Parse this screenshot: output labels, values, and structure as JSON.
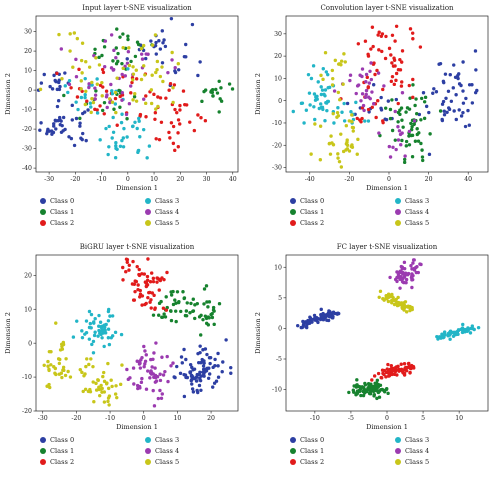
{
  "classes": [
    {
      "label": "Class 0",
      "color": "#2d3fa3"
    },
    {
      "label": "Class 1",
      "color": "#16822e"
    },
    {
      "label": "Class 2",
      "color": "#e11b1b"
    },
    {
      "label": "Class 3",
      "color": "#22b5c7"
    },
    {
      "label": "Class 4",
      "color": "#9b3bb0"
    },
    {
      "label": "Class 5",
      "color": "#c8c61a"
    }
  ],
  "chart_data": [
    {
      "type": "scatter",
      "title": "Input layer t-SNE visualization",
      "xlabel": "Dimension 1",
      "ylabel": "Dimension 2",
      "xlim": [
        -35,
        42
      ],
      "ylim": [
        -42,
        38
      ],
      "xticks": [
        -30,
        -20,
        -10,
        0,
        10,
        20,
        30,
        40
      ],
      "yticks": [
        -40,
        -30,
        -20,
        -10,
        0,
        10,
        20,
        30
      ],
      "grid": false,
      "legend": "below",
      "clusters": [
        {
          "cls": 0,
          "cx": -25,
          "cy": -18,
          "sx": 5,
          "sy": 5,
          "n": 40
        },
        {
          "cls": 0,
          "cx": -27,
          "cy": 3,
          "sx": 4,
          "sy": 4,
          "n": 20
        },
        {
          "cls": 0,
          "cx": 12,
          "cy": 22,
          "sx": 6,
          "sy": 9,
          "n": 30
        },
        {
          "cls": 1,
          "cx": -3,
          "cy": 22,
          "sx": 6,
          "sy": 6,
          "n": 25
        },
        {
          "cls": 1,
          "cx": 33,
          "cy": -2,
          "sx": 4,
          "sy": 3,
          "n": 18
        },
        {
          "cls": 1,
          "cx": -10,
          "cy": -5,
          "sx": 7,
          "sy": 5,
          "n": 15
        },
        {
          "cls": 2,
          "cx": 17,
          "cy": -13,
          "sx": 6,
          "sy": 7,
          "n": 40
        },
        {
          "cls": 2,
          "cx": -5,
          "cy": -2,
          "sx": 12,
          "sy": 7,
          "n": 30
        },
        {
          "cls": 3,
          "cx": -2,
          "cy": -25,
          "sx": 5,
          "sy": 6,
          "n": 35
        },
        {
          "cls": 3,
          "cx": -12,
          "cy": -2,
          "sx": 7,
          "sy": 6,
          "n": 20
        },
        {
          "cls": 4,
          "cx": 2,
          "cy": 15,
          "sx": 7,
          "sy": 8,
          "n": 25
        },
        {
          "cls": 4,
          "cx": -10,
          "cy": 2,
          "sx": 8,
          "sy": 7,
          "n": 20
        },
        {
          "cls": 5,
          "cx": -16,
          "cy": 13,
          "sx": 6,
          "sy": 10,
          "n": 25
        },
        {
          "cls": 5,
          "cx": 8,
          "cy": 12,
          "sx": 6,
          "sy": 8,
          "n": 25
        },
        {
          "cls": 5,
          "cx": -2,
          "cy": -5,
          "sx": 9,
          "sy": 6,
          "n": 15
        }
      ]
    },
    {
      "type": "scatter",
      "title": "Convolution layer t-SNE visualization",
      "xlabel": "Dimension 1",
      "ylabel": "Dimension 2",
      "xlim": [
        -52,
        50
      ],
      "ylim": [
        -32,
        38
      ],
      "xticks": [
        -40,
        -20,
        0,
        20,
        40
      ],
      "yticks": [
        -30,
        -20,
        -10,
        0,
        10,
        20,
        30
      ],
      "grid": false,
      "legend": "below",
      "clusters": [
        {
          "cls": 0,
          "cx": 33,
          "cy": 3,
          "sx": 7,
          "sy": 9,
          "n": 55
        },
        {
          "cls": 0,
          "cx": -8,
          "cy": -2,
          "sx": 6,
          "sy": 6,
          "n": 15
        },
        {
          "cls": 1,
          "cx": 12,
          "cy": -12,
          "sx": 5,
          "sy": 9,
          "n": 50
        },
        {
          "cls": 1,
          "cx": 3,
          "cy": -5,
          "sx": 4,
          "sy": 4,
          "n": 10
        },
        {
          "cls": 2,
          "cx": 0,
          "cy": 18,
          "sx": 7,
          "sy": 10,
          "n": 55
        },
        {
          "cls": 2,
          "cx": -12,
          "cy": -2,
          "sx": 6,
          "sy": 5,
          "n": 15
        },
        {
          "cls": 3,
          "cx": -35,
          "cy": 1,
          "sx": 6,
          "sy": 7,
          "n": 45
        },
        {
          "cls": 3,
          "cx": -18,
          "cy": -5,
          "sx": 5,
          "sy": 5,
          "n": 10
        },
        {
          "cls": 4,
          "cx": -12,
          "cy": 5,
          "sx": 7,
          "sy": 6,
          "n": 30
        },
        {
          "cls": 4,
          "cx": 3,
          "cy": -15,
          "sx": 4,
          "sy": 6,
          "n": 15
        },
        {
          "cls": 5,
          "cx": -24,
          "cy": -17,
          "sx": 5,
          "sy": 7,
          "n": 40
        },
        {
          "cls": 5,
          "cx": -26,
          "cy": 15,
          "sx": 4,
          "sy": 6,
          "n": 15
        }
      ]
    },
    {
      "type": "scatter",
      "title": "BiGRU layer t-SNE visualization",
      "xlabel": "Dimension 1",
      "ylabel": "Dimension 2",
      "xlim": [
        -32,
        28
      ],
      "ylim": [
        -20,
        26
      ],
      "xticks": [
        -30,
        -20,
        -10,
        0,
        10,
        20
      ],
      "yticks": [
        -20,
        -10,
        0,
        10,
        20
      ],
      "grid": false,
      "legend": "below",
      "clusters": [
        {
          "cls": 0,
          "cx": 17,
          "cy": -8,
          "sx": 4,
          "sy": 3.5,
          "n": 90
        },
        {
          "cls": 1,
          "cx": 10,
          "cy": 10,
          "sx": 3,
          "sy": 3,
          "n": 40
        },
        {
          "cls": 1,
          "cx": 19,
          "cy": 9,
          "sx": 2,
          "sy": 3,
          "n": 25
        },
        {
          "cls": 2,
          "cx": 0,
          "cy": 17,
          "sx": 3.5,
          "sy": 4,
          "n": 65
        },
        {
          "cls": 3,
          "cx": -13,
          "cy": 4,
          "sx": 3,
          "sy": 3,
          "n": 55
        },
        {
          "cls": 4,
          "cx": 2,
          "cy": -9,
          "sx": 3,
          "sy": 4.5,
          "n": 60
        },
        {
          "cls": 5,
          "cx": -26,
          "cy": -7,
          "sx": 2.5,
          "sy": 4,
          "n": 35
        },
        {
          "cls": 5,
          "cx": -13,
          "cy": -12,
          "sx": 3,
          "sy": 4,
          "n": 50
        }
      ]
    },
    {
      "type": "scatter",
      "title": "FC layer t-SNE visualization",
      "xlabel": "Dimension 1",
      "ylabel": "Dimension 2",
      "xlim": [
        -14,
        14
      ],
      "ylim": [
        -13.5,
        12
      ],
      "xticks": [
        -10,
        -5,
        0,
        5,
        10
      ],
      "yticks": [
        -10,
        -5,
        0,
        5,
        10
      ],
      "grid": false,
      "legend": "below",
      "segments": [
        {
          "cls": 0,
          "x0": -12,
          "y0": 0.5,
          "x1": -7,
          "y1": 2.5,
          "spread": 0.35,
          "n": 70
        },
        {
          "cls": 1,
          "x0": -4.5,
          "y0": -10,
          "x1": -0.5,
          "y1": -10,
          "spread": 0.6,
          "n": 90
        },
        {
          "cls": 2,
          "x0": -1,
          "y0": -7.5,
          "x1": 3.5,
          "y1": -6.5,
          "spread": 0.5,
          "n": 70
        },
        {
          "cls": 3,
          "x0": 7,
          "y0": -1.5,
          "x1": 12,
          "y1": 0,
          "spread": 0.3,
          "n": 60
        },
        {
          "cls": 4,
          "x0": 2,
          "y0": 8,
          "x1": 3.5,
          "y1": 10,
          "spread": 0.7,
          "n": 60
        },
        {
          "cls": 5,
          "x0": -0.5,
          "y0": 5.5,
          "x1": 3.5,
          "y1": 3,
          "spread": 0.35,
          "n": 60
        }
      ]
    }
  ]
}
